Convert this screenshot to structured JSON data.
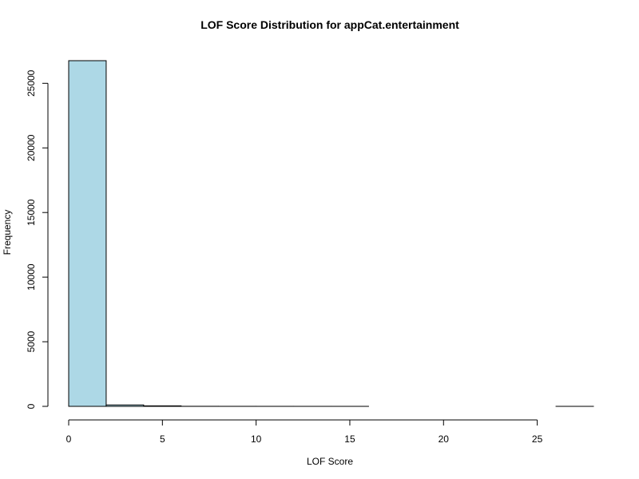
{
  "chart_data": {
    "type": "bar",
    "subtype": "histogram",
    "title": "LOF Score Distribution for appCat.entertainment",
    "xlabel": "LOF Score",
    "ylabel": "Frequency",
    "bin_edges": [
      0,
      2,
      4,
      6,
      8,
      10,
      12,
      14,
      16,
      18,
      20,
      22,
      24,
      26,
      28
    ],
    "values": [
      26750,
      110,
      40,
      5,
      3,
      2,
      1,
      1,
      0,
      0,
      0,
      0,
      0,
      1
    ],
    "xlim": [
      0,
      28
    ],
    "ylim": [
      0,
      26750
    ],
    "x_ticks": [
      0,
      5,
      10,
      15,
      20,
      25
    ],
    "x_tick_labels": [
      "0",
      "5",
      "10",
      "15",
      "20",
      "25"
    ],
    "y_ticks": [
      0,
      5000,
      10000,
      15000,
      20000,
      25000
    ],
    "y_tick_labels": [
      "0",
      "5000",
      "10000",
      "15000",
      "20000",
      "25000"
    ],
    "bar_color": "#add8e6",
    "bar_edge_color": "#000000",
    "grid": false,
    "legend": "none"
  }
}
